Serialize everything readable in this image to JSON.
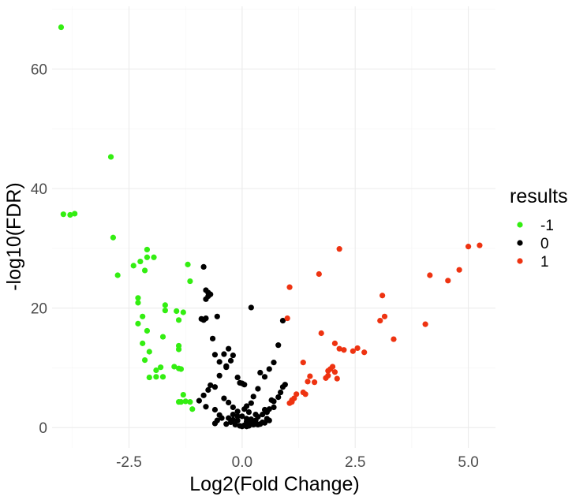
{
  "chart_data": {
    "type": "scatter",
    "title": "",
    "xlabel": "Log2(Fold Change)",
    "ylabel": "-log10(FDR)",
    "xlim": [
      -4.2,
      5.6
    ],
    "ylim": [
      -3.4,
      70.5
    ],
    "x_ticks": [
      -2.5,
      0,
      2.5,
      5
    ],
    "x_tick_labels": [
      "-2.5",
      "0.0",
      "2.5",
      "5.0"
    ],
    "y_ticks": [
      0,
      20,
      40,
      60
    ],
    "y_tick_labels": [
      "0",
      "20",
      "40",
      "60"
    ],
    "grid": true,
    "legend": {
      "title": "results",
      "position": "right",
      "entries": [
        {
          "label": "-1",
          "color": "#33ee11"
        },
        {
          "label": "0",
          "color": "#000000"
        },
        {
          "label": "1",
          "color": "#ee3311"
        }
      ]
    },
    "series": [
      {
        "name": "-1",
        "color": "#33ee11",
        "x": [
          -4.0,
          -2.9,
          -3.95,
          -3.8,
          -3.7,
          -2.85,
          -2.1,
          -1.95,
          -2.25,
          -2.4,
          -2.15,
          -2.1,
          -2.75,
          -1.2,
          -1.15,
          -2.3,
          -2.3,
          -1.7,
          -2.2,
          -2.1,
          -1.7,
          -1.45,
          -1.3,
          -1.75,
          -1.4,
          -2.3,
          -1.4,
          -1.4,
          -2.2,
          -2.05,
          -2.15,
          -1.8,
          -1.9,
          -1.5,
          -1.4,
          -1.35,
          -2.05,
          -1.9,
          -1.75,
          -1.3,
          -1.35,
          -1.4,
          -1.25,
          -1.15,
          -1.1
        ],
        "y": [
          67.0,
          45.3,
          35.7,
          35.6,
          35.8,
          31.8,
          29.8,
          28.5,
          27.8,
          27.1,
          26.3,
          28.5,
          25.5,
          27.3,
          24.5,
          21.7,
          20.9,
          20.5,
          18.6,
          16.2,
          19.6,
          19.5,
          19.3,
          15.2,
          18.0,
          17.4,
          13.7,
          13.1,
          14.1,
          12.7,
          11.3,
          10.1,
          9.6,
          10.2,
          9.9,
          9.8,
          8.4,
          8.5,
          8.5,
          5.5,
          4.3,
          4.3,
          4.4,
          4.3,
          3.1
        ]
      },
      {
        "name": "0",
        "color": "#000000",
        "x": [
          -0.85,
          -0.8,
          -0.75,
          -0.7,
          -0.8,
          -0.75,
          -0.8,
          -0.55,
          -0.9,
          -0.85,
          -0.65,
          -0.6,
          -0.5,
          -0.4,
          -0.3,
          -0.35,
          -0.2,
          -0.25,
          -0.1,
          -0.05,
          -0.35,
          -0.5,
          -0.6,
          -0.7,
          -0.75,
          -0.85,
          -0.95,
          -0.8,
          -0.6,
          -0.5,
          -0.3,
          -0.2,
          -0.1,
          0.1,
          0.2,
          0.3,
          0.35,
          0.45,
          0.55,
          0.6,
          0.7,
          0.65,
          0.8,
          0.85,
          0.9,
          0.95,
          0.6,
          0.7,
          0.5,
          0.4,
          0.35,
          0.25,
          0.2,
          0.1,
          0.05,
          0.15,
          0.3,
          0.5,
          0.7,
          0.8,
          0.9,
          -0.4,
          -0.3,
          -0.2,
          -0.1,
          0.0,
          0.1,
          0.2,
          0.3,
          0.4,
          0.5,
          -0.45,
          -0.25,
          -0.15,
          0.05,
          0.15,
          0.25,
          0.45,
          0.6,
          -0.6,
          -0.55,
          -0.35,
          -0.05,
          0.0,
          0.1,
          0.15,
          0.3,
          0.35,
          0.55,
          -0.2,
          -0.1,
          0.0,
          0.05,
          0.2
        ],
        "y": [
          26.9,
          23.0,
          22.6,
          22.3,
          21.5,
          22.0,
          18.3,
          18.6,
          18.2,
          18.0,
          14.9,
          12.2,
          11.0,
          12.3,
          13.2,
          10.1,
          12.1,
          11.2,
          8.4,
          7.5,
          10.3,
          8.7,
          6.8,
          7.1,
          6.3,
          5.4,
          4.5,
          3.5,
          3.0,
          2.1,
          1.6,
          1.3,
          1.2,
          1.0,
          1.4,
          1.2,
          1.8,
          2.2,
          2.6,
          3.1,
          3.4,
          4.6,
          5.1,
          5.9,
          6.8,
          7.2,
          9.8,
          10.9,
          8.5,
          9.2,
          6.5,
          5.2,
          4.1,
          3.6,
          3.1,
          2.6,
          2.2,
          3.0,
          4.4,
          13.8,
          17.9,
          4.9,
          4.2,
          3.4,
          2.7,
          1.9,
          1.5,
          0.9,
          0.7,
          0.6,
          0.8,
          1.6,
          0.9,
          0.5,
          0.4,
          0.3,
          0.5,
          0.9,
          1.2,
          0.7,
          1.2,
          0.6,
          0.3,
          0.2,
          0.2,
          0.4,
          0.6,
          0.5,
          1.5,
          2.2,
          1.9,
          7.4,
          7.2,
          20.1
        ]
      },
      {
        "name": "1",
        "color": "#ee3311",
        "x": [
          5.25,
          5.0,
          4.8,
          4.15,
          4.55,
          4.05,
          2.15,
          1.7,
          1.05,
          1.0,
          3.1,
          3.15,
          3.05,
          3.35,
          2.7,
          2.55,
          2.45,
          1.75,
          2.05,
          2.15,
          2.25,
          1.35,
          1.9,
          1.95,
          2.0,
          2.05,
          1.85,
          2.1,
          1.9,
          1.6,
          1.5,
          1.45,
          1.4,
          1.35,
          1.2,
          1.15,
          1.1,
          1.1,
          1.05
        ],
        "y": [
          30.5,
          30.3,
          26.4,
          25.5,
          24.6,
          17.3,
          29.9,
          25.7,
          23.5,
          18.3,
          22.1,
          18.6,
          17.9,
          14.8,
          12.6,
          13.3,
          12.8,
          15.8,
          14.1,
          13.2,
          13.0,
          10.9,
          9.5,
          9.8,
          10.2,
          9.3,
          8.3,
          8.2,
          8.7,
          7.6,
          8.6,
          7.7,
          5.6,
          5.9,
          5.6,
          4.9,
          4.6,
          4.3,
          4.1
        ]
      }
    ]
  }
}
